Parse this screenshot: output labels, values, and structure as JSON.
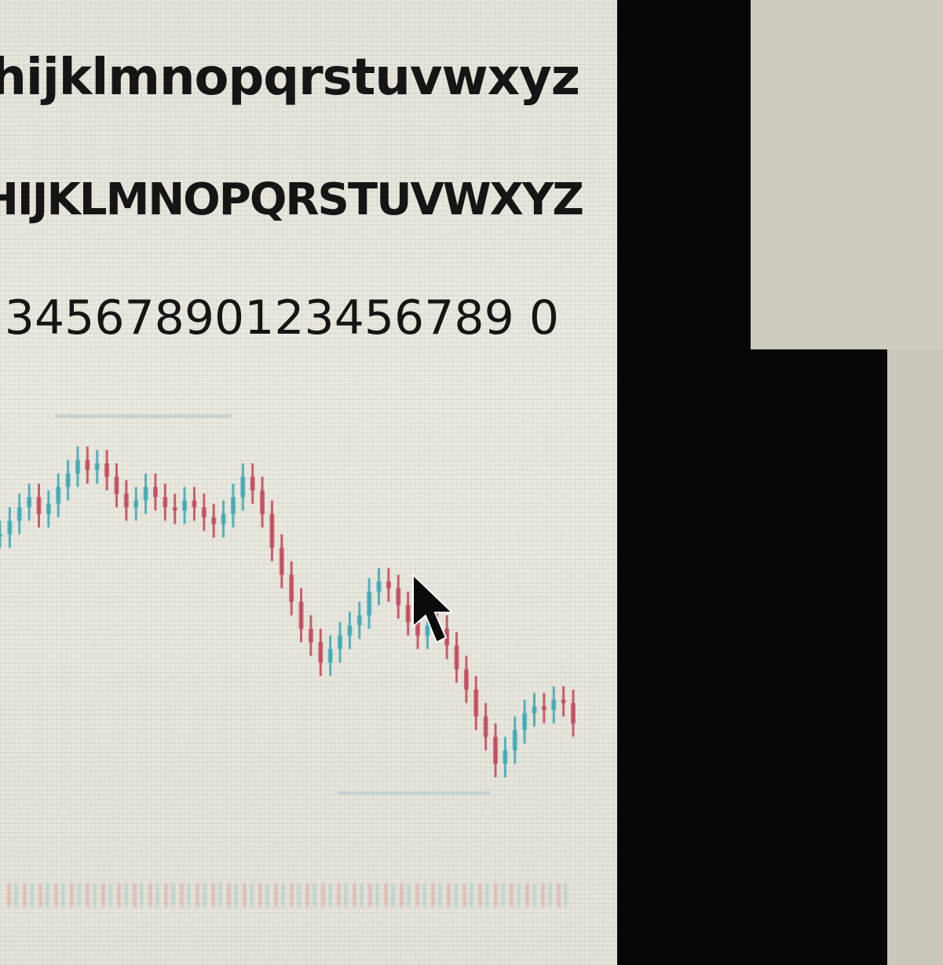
{
  "font_sample": {
    "lowercase": "hijklmnopqrstuvwxyz",
    "uppercase": "HIJKLMNOPQRSTUVWXYZ",
    "digits": "34567890123456789 0"
  },
  "chart_data": {
    "type": "candlestick",
    "colors": {
      "up": "#3aa7b5",
      "down": "#c2455a"
    },
    "series": [
      {
        "values": [
          62,
          66,
          70,
          73,
          68,
          71,
          76,
          80,
          84,
          81,
          83,
          79,
          74,
          70,
          72,
          76,
          73,
          70,
          69,
          72,
          70,
          67,
          65,
          68,
          73,
          79,
          75,
          68,
          58,
          50,
          42,
          34,
          30,
          24,
          28,
          32,
          35,
          38,
          45,
          48,
          46,
          41,
          36,
          32,
          35,
          34,
          29,
          22,
          16,
          8,
          2,
          -6,
          -2,
          4,
          9,
          11,
          10,
          13,
          12,
          6
        ]
      }
    ]
  },
  "cursor": {
    "icon": "arrow-cursor-icon"
  }
}
